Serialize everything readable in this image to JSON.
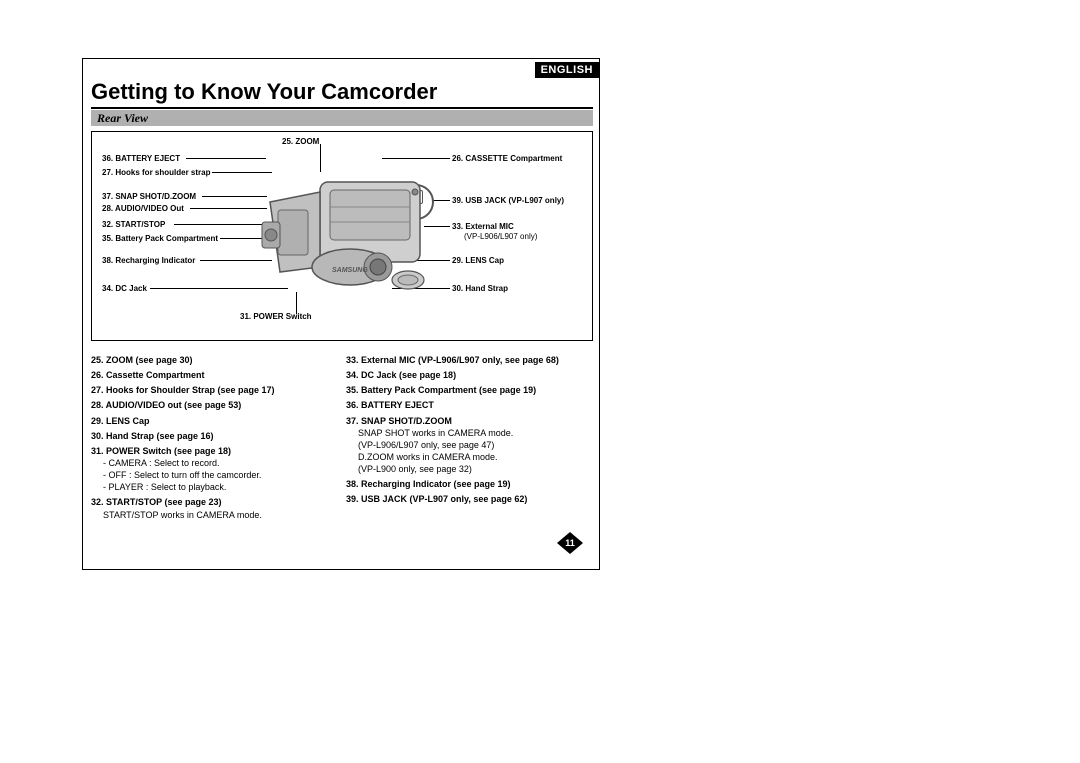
{
  "language_badge": "ENGLISH",
  "title": "Getting to Know Your Camcorder",
  "subtitle": "Rear View",
  "page_number": "11",
  "callouts": {
    "top": "25. ZOOM",
    "left": [
      "36. BATTERY EJECT",
      "27. Hooks for shoulder strap",
      "37. SNAP SHOT/D.ZOOM",
      "28. AUDIO/VIDEO Out",
      "32. START/STOP",
      "35. Battery Pack Compartment",
      "38. Recharging Indicator",
      "34. DC Jack"
    ],
    "right": [
      "26. CASSETTE Compartment",
      "39. USB JACK (VP-L907 only)",
      "33. External MIC",
      "(VP-L906/L907 only)",
      "29. LENS Cap",
      "30. Hand Strap"
    ],
    "bottom": "31. POWER Switch",
    "mic_label": "MIC"
  },
  "left_column": [
    {
      "b": "25. ZOOM (see page 30)"
    },
    {
      "b": "26. Cassette Compartment"
    },
    {
      "b": "27. Hooks for Shoulder Strap (see page 17)"
    },
    {
      "b": "28. AUDIO/VIDEO out (see page 53)"
    },
    {
      "b": "29. LENS Cap"
    },
    {
      "b": "30. Hand Strap (see page 16)"
    },
    {
      "b": "31. POWER Switch (see page 18)"
    },
    {
      "s": "- CAMERA : Select to record."
    },
    {
      "s": "- OFF : Select to turn off the camcorder."
    },
    {
      "s": "- PLAYER : Select to playback."
    },
    {
      "b": "32. START/STOP (see page 23)"
    },
    {
      "s": "START/STOP works in CAMERA mode."
    }
  ],
  "right_column": [
    {
      "b": "33. External MIC (VP-L906/L907 only, see page 68)"
    },
    {
      "b": "34. DC Jack (see page 18)"
    },
    {
      "b": "35. Battery Pack Compartment (see page 19)"
    },
    {
      "b": "36. BATTERY EJECT"
    },
    {
      "b": "37. SNAP SHOT/D.ZOOM"
    },
    {
      "s": "SNAP SHOT works in CAMERA mode."
    },
    {
      "s": "(VP-L906/L907 only, see page 47)"
    },
    {
      "s": "D.ZOOM works in CAMERA mode."
    },
    {
      "s": "(VP-L900 only, see page 32)"
    },
    {
      "b": "38. Recharging Indicator (see page 19)"
    },
    {
      "b": "39. USB JACK (VP-L907 only, see page 62)"
    }
  ]
}
